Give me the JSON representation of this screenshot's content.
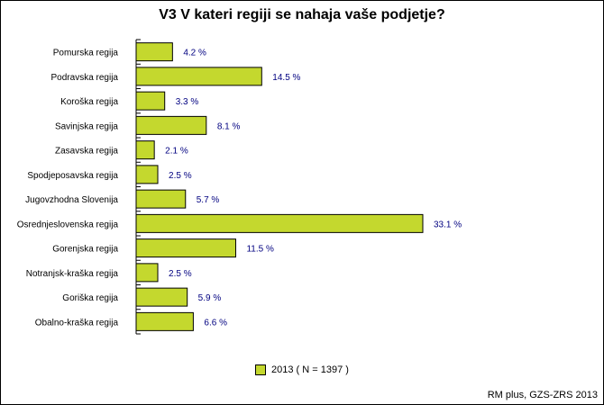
{
  "chart_data": {
    "type": "bar",
    "orientation": "horizontal",
    "title": "V3 V kateri regiji se nahaja vaše podjetje?",
    "xlabel": "",
    "ylabel": "",
    "categories": [
      "Pomurska regija",
      "Podravska regija",
      "Koroška regija",
      "Savinjska regija",
      "Zasavska regija",
      "Spodjeposavska regija",
      "Jugovzhodna Slovenija",
      "Osrednjeslovenska regija",
      "Gorenjska regija",
      "Notranjsk-kraška regija",
      "Goriška regija",
      "Obalno-kraška regija"
    ],
    "series": [
      {
        "name": "2013 ( N = 1397 )",
        "values": [
          4.2,
          14.5,
          3.3,
          8.1,
          2.1,
          2.5,
          5.7,
          33.1,
          11.5,
          2.5,
          5.9,
          6.6
        ]
      }
    ],
    "value_labels": [
      "4.2 %",
      "14.5 %",
      "3.3 %",
      "8.1 %",
      "2.1 %",
      "2.5 %",
      "5.7 %",
      "33.1 %",
      "11.5 %",
      "2.5 %",
      "5.9 %",
      "6.6 %"
    ],
    "xlim": [
      0,
      33.1
    ],
    "grid": false,
    "legend_position": "bottom-center",
    "bar_color": "#c4d82e",
    "label_color": "#000080",
    "source": "RM plus, GZS-ZRS 2013"
  }
}
